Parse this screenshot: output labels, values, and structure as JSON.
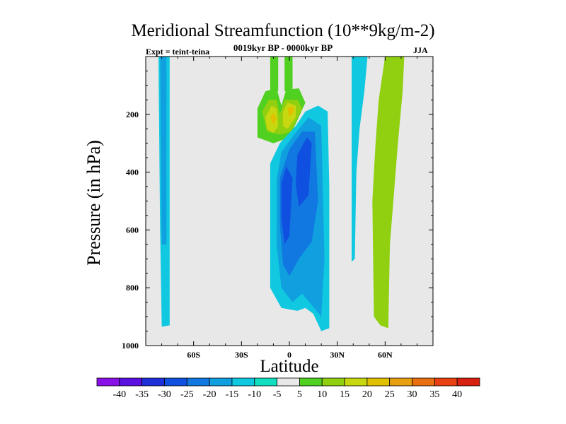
{
  "chart_data": {
    "type": "heatmap",
    "title": "Meridional Streamfunction (10**9kg/m-2)",
    "subtitle": "0019kyr BP - 0000kyr BP",
    "left_label": "Expt = teint-teina",
    "right_label": "JJA",
    "xlabel": "Latitude",
    "ylabel": "Pressure (in hPa)",
    "xlim": [
      -90,
      90
    ],
    "ylim": [
      1000,
      0
    ],
    "x_ticks": [
      {
        "value": -60,
        "label": "60S"
      },
      {
        "value": -30,
        "label": "30S"
      },
      {
        "value": 0,
        "label": "0"
      },
      {
        "value": 30,
        "label": "30N"
      },
      {
        "value": 60,
        "label": "60N"
      }
    ],
    "y_ticks": [
      {
        "value": 200,
        "label": "200"
      },
      {
        "value": 400,
        "label": "400"
      },
      {
        "value": 600,
        "label": "600"
      },
      {
        "value": 800,
        "label": "800"
      },
      {
        "value": 1000,
        "label": "1000"
      }
    ],
    "colorbar": {
      "levels": [
        "-40",
        "-35",
        "-30",
        "-25",
        "-20",
        "-15",
        "-10",
        "-5",
        "5",
        "10",
        "15",
        "20",
        "25",
        "30",
        "35",
        "40"
      ],
      "colors": [
        "#8a10e8",
        "#5a10e0",
        "#2030d8",
        "#1050e0",
        "#1078e0",
        "#10a0e0",
        "#10c8e0",
        "#10e0c0",
        "#e8e8e8",
        "#50d020",
        "#90d010",
        "#c8d810",
        "#e0c000",
        "#e8a010",
        "#e87010",
        "#e84010",
        "#d82010"
      ]
    },
    "regions": [
      {
        "name": "sh-polar-cell",
        "level": "-10",
        "points": [
          [
            -82,
            0
          ],
          [
            -75,
            0
          ],
          [
            -75,
            930
          ],
          [
            -80,
            935
          ],
          [
            -81,
            600
          ]
        ]
      },
      {
        "name": "sh-polar-core",
        "level": "-15",
        "points": [
          [
            -81,
            0
          ],
          [
            -77,
            0
          ],
          [
            -77,
            650
          ],
          [
            -80,
            650
          ]
        ]
      },
      {
        "name": "upper-twin-cell",
        "level": "5",
        "points": [
          [
            -20,
            180
          ],
          [
            -15,
            120
          ],
          [
            -8,
            110
          ],
          [
            -5,
            170
          ],
          [
            -2,
            115
          ],
          [
            6,
            110
          ],
          [
            10,
            160
          ],
          [
            0,
            280
          ],
          [
            -10,
            300
          ],
          [
            -20,
            280
          ]
        ]
      },
      {
        "name": "upper-twin-10",
        "level": "10",
        "points": [
          [
            -17,
            190
          ],
          [
            -13,
            150
          ],
          [
            -8,
            150
          ],
          [
            -6,
            200
          ],
          [
            -3,
            150
          ],
          [
            5,
            150
          ],
          [
            8,
            180
          ],
          [
            1,
            260
          ],
          [
            -6,
            270
          ],
          [
            -14,
            260
          ]
        ]
      },
      {
        "name": "upper-twin-15",
        "level": "15",
        "points": [
          [
            -15,
            210
          ],
          [
            -11,
            170
          ],
          [
            -8,
            180
          ],
          [
            -7,
            240
          ],
          [
            -10,
            265
          ],
          [
            -14,
            250
          ]
        ]
      },
      {
        "name": "upper-twin-15b",
        "level": "15",
        "points": [
          [
            -4,
            190
          ],
          [
            -1,
            160
          ],
          [
            4,
            170
          ],
          [
            4,
            210
          ],
          [
            -1,
            250
          ],
          [
            -4,
            240
          ]
        ]
      },
      {
        "name": "upper-twin-20",
        "level": "20",
        "points": [
          [
            -12,
            210
          ],
          [
            -10,
            195
          ],
          [
            -8,
            215
          ],
          [
            -10,
            235
          ]
        ]
      },
      {
        "name": "upper-twin-20b",
        "level": "20",
        "points": [
          [
            -1,
            180
          ],
          [
            2,
            170
          ],
          [
            3,
            190
          ],
          [
            0,
            210
          ]
        ]
      },
      {
        "name": "upper-stem-left",
        "level": "5",
        "points": [
          [
            -12,
            0
          ],
          [
            -7,
            0
          ],
          [
            -7,
            120
          ],
          [
            -12,
            120
          ]
        ]
      },
      {
        "name": "upper-stem-right",
        "level": "5",
        "points": [
          [
            -3,
            0
          ],
          [
            2,
            0
          ],
          [
            2,
            120
          ],
          [
            -3,
            120
          ]
        ]
      },
      {
        "name": "hadley-cell",
        "level": "-10",
        "points": [
          [
            -12,
            370
          ],
          [
            -6,
            300
          ],
          [
            4,
            240
          ],
          [
            10,
            190
          ],
          [
            18,
            170
          ],
          [
            24,
            190
          ],
          [
            25,
            450
          ],
          [
            25,
            940
          ],
          [
            20,
            950
          ],
          [
            15,
            890
          ],
          [
            10,
            870
          ],
          [
            5,
            880
          ],
          [
            -5,
            870
          ],
          [
            -12,
            800
          ],
          [
            -12,
            600
          ]
        ]
      },
      {
        "name": "hadley-15",
        "level": "-15",
        "points": [
          [
            -8,
            430
          ],
          [
            -5,
            330
          ],
          [
            3,
            270
          ],
          [
            12,
            210
          ],
          [
            20,
            240
          ],
          [
            22,
            700
          ],
          [
            20,
            900
          ],
          [
            14,
            860
          ],
          [
            8,
            820
          ],
          [
            2,
            850
          ],
          [
            -5,
            800
          ],
          [
            -8,
            650
          ]
        ]
      },
      {
        "name": "hadley-20",
        "level": "-20",
        "points": [
          [
            -6,
            420
          ],
          [
            0,
            320
          ],
          [
            8,
            260
          ],
          [
            16,
            260
          ],
          [
            18,
            500
          ],
          [
            14,
            640
          ],
          [
            6,
            700
          ],
          [
            0,
            760
          ],
          [
            -4,
            720
          ],
          [
            -6,
            580
          ]
        ]
      },
      {
        "name": "hadley-25",
        "level": "-25",
        "points": [
          [
            -5,
            440
          ],
          [
            -2,
            380
          ],
          [
            2,
            420
          ],
          [
            0,
            620
          ],
          [
            -3,
            650
          ],
          [
            -5,
            560
          ]
        ]
      },
      {
        "name": "hadley-25b",
        "level": "-25",
        "points": [
          [
            5,
            340
          ],
          [
            11,
            280
          ],
          [
            14,
            300
          ],
          [
            12,
            480
          ],
          [
            6,
            520
          ],
          [
            4,
            440
          ]
        ]
      },
      {
        "name": "nh-streak",
        "level": "-10",
        "points": [
          [
            39,
            0
          ],
          [
            49,
            0
          ],
          [
            47,
            120
          ],
          [
            44,
            250
          ],
          [
            42,
            400
          ],
          [
            41,
            700
          ],
          [
            39,
            710
          ],
          [
            39,
            300
          ]
        ]
      },
      {
        "name": "nh-ferrel",
        "level": "10",
        "points": [
          [
            60,
            0
          ],
          [
            72,
            0
          ],
          [
            71,
            120
          ],
          [
            68,
            300
          ],
          [
            63,
            650
          ],
          [
            62,
            940
          ],
          [
            57,
            930
          ],
          [
            53,
            900
          ],
          [
            52,
            500
          ],
          [
            54,
            300
          ],
          [
            56,
            150
          ]
        ]
      }
    ]
  }
}
